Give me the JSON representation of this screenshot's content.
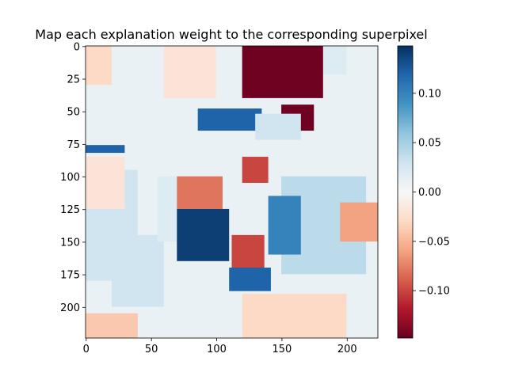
{
  "chart_data": {
    "type": "heatmap",
    "title": "Map each explanation weight to the corresponding superpixel",
    "xlabel": "",
    "ylabel": "",
    "colormap": "RdBu",
    "colors": {
      "low": "#67001f",
      "mid_low": "#d6604d",
      "mid": "#f7f7f7",
      "mid_high": "#4393c3",
      "high": "#053061"
    },
    "image_size": [
      224,
      224
    ],
    "xlim": [
      -0.5,
      223.5
    ],
    "ylim": [
      223.5,
      -0.5
    ],
    "x_ticks": [
      0,
      50,
      100,
      150,
      200
    ],
    "x_tick_labels": [
      "0",
      "50",
      "100",
      "150",
      "200"
    ],
    "y_ticks": [
      0,
      25,
      50,
      75,
      100,
      125,
      150,
      175,
      200
    ],
    "y_tick_labels": [
      "0",
      "25",
      "50",
      "75",
      "100",
      "125",
      "150",
      "175",
      "200"
    ],
    "colorbar": {
      "min": -0.148,
      "max": 0.148,
      "ticks": [
        0.1,
        0.05,
        0.0,
        -0.05,
        -0.1
      ],
      "tick_labels": [
        "0.10",
        "0.05",
        "0.00",
        "−0.05",
        "−0.10"
      ]
    },
    "regions": [
      {
        "value": 0.01,
        "desc": "background"
      },
      {
        "value": 0.03,
        "x": [
          0,
          40
        ],
        "y": [
          95,
          180
        ]
      },
      {
        "value": -0.02,
        "x": [
          0,
          30
        ],
        "y": [
          85,
          125
        ]
      },
      {
        "value": 0.03,
        "x": [
          20,
          60
        ],
        "y": [
          145,
          200
        ]
      },
      {
        "value": 0.04,
        "x": [
          150,
          215
        ],
        "y": [
          100,
          175
        ]
      },
      {
        "value": 0.02,
        "x": [
          130,
          200
        ],
        "y": [
          0,
          22
        ]
      },
      {
        "value": -0.04,
        "x": [
          0,
          40
        ],
        "y": [
          205,
          224
        ]
      },
      {
        "value": -0.03,
        "x": [
          120,
          200
        ],
        "y": [
          190,
          224
        ]
      },
      {
        "value": -0.02,
        "x": [
          60,
          100
        ],
        "y": [
          0,
          40
        ]
      },
      {
        "value": -0.03,
        "x": [
          0,
          20
        ],
        "y": [
          0,
          30
        ]
      },
      {
        "value": 0.02,
        "x": [
          55,
          85
        ],
        "y": [
          100,
          150
        ]
      },
      {
        "value": -0.06,
        "x": [
          195,
          224
        ],
        "y": [
          120,
          150
        ]
      },
      {
        "value": -0.145,
        "x": [
          120,
          182
        ],
        "y": [
          0,
          40
        ]
      },
      {
        "value": -0.145,
        "x": [
          150,
          175
        ],
        "y": [
          45,
          65
        ]
      },
      {
        "value": 0.12,
        "x": [
          86,
          135
        ],
        "y": [
          48,
          65
        ]
      },
      {
        "value": 0.03,
        "x": [
          130,
          165
        ],
        "y": [
          52,
          72
        ]
      },
      {
        "value": -0.1,
        "x": [
          120,
          140
        ],
        "y": [
          85,
          105
        ]
      },
      {
        "value": 0.12,
        "x": [
          0,
          30
        ],
        "y": [
          76,
          82
        ]
      },
      {
        "value": -0.08,
        "x": [
          70,
          105
        ],
        "y": [
          100,
          125
        ]
      },
      {
        "value": 0.14,
        "x": [
          70,
          110
        ],
        "y": [
          125,
          165
        ]
      },
      {
        "value": -0.1,
        "x": [
          112,
          137
        ],
        "y": [
          145,
          180
        ]
      },
      {
        "value": 0.12,
        "x": [
          110,
          142
        ],
        "y": [
          170,
          188
        ]
      },
      {
        "value": 0.1,
        "x": [
          140,
          165
        ],
        "y": [
          115,
          160
        ]
      }
    ]
  }
}
